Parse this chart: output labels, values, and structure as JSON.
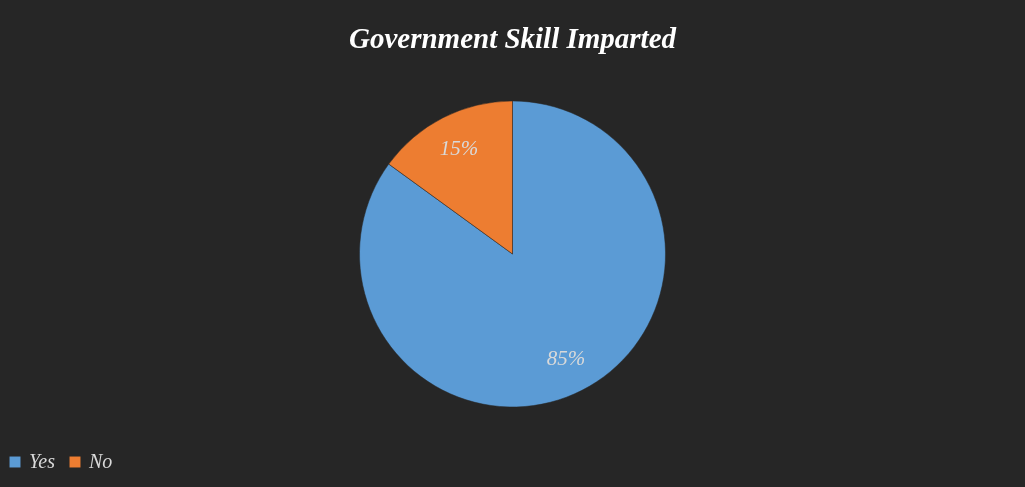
{
  "chart_data": {
    "type": "pie",
    "title": "Government Skill Imparted",
    "categories": [
      "Yes",
      "No"
    ],
    "values": [
      85,
      15
    ],
    "colors": [
      "#5b9bd5",
      "#ed7d31"
    ],
    "value_labels": [
      "85%",
      "15%"
    ],
    "legend": "bottom"
  }
}
